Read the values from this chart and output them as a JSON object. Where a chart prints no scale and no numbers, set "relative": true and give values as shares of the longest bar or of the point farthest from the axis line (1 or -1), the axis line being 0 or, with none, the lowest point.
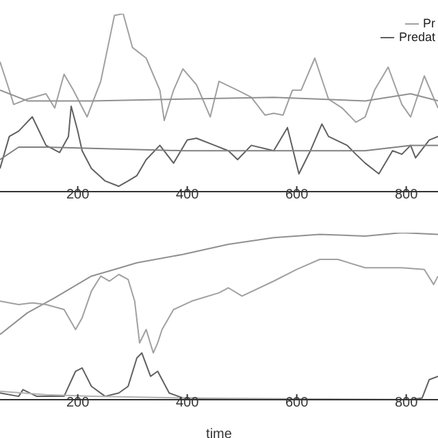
{
  "chart_data": [
    {
      "type": "line",
      "relative": true,
      "xlim": [
        58,
        858
      ],
      "xticks": [
        200,
        400,
        600,
        800
      ],
      "legend": "top right",
      "series": [
        {
          "name": "Pr",
          "color": "#a0a0a0",
          "x": [
            58,
            75,
            83,
            108,
            142,
            158,
            175,
            192,
            217,
            242,
            267,
            283,
            300,
            325,
            350,
            358,
            375,
            392,
            417,
            442,
            458,
            492,
            517,
            542,
            558,
            575,
            592,
            608,
            633,
            658,
            683,
            708,
            725,
            742,
            767,
            792,
            808,
            833,
            858
          ],
          "values": [
            0.73,
            0.57,
            0.49,
            0.52,
            0.55,
            0.47,
            0.66,
            0.57,
            0.42,
            0.62,
            0.99,
            1.0,
            0.81,
            0.75,
            0.57,
            0.4,
            0.57,
            0.69,
            0.6,
            0.42,
            0.62,
            0.57,
            0.53,
            0.43,
            0.44,
            0.43,
            0.57,
            0.57,
            0.75,
            0.52,
            0.47,
            0.39,
            0.42,
            0.57,
            0.7,
            0.49,
            0.42,
            0.65,
            0.47
          ]
        },
        {
          "name": "Predat",
          "color": "#606060",
          "x": [
            58,
            75,
            92,
            117,
            142,
            167,
            183,
            188,
            200,
            208,
            225,
            250,
            275,
            292,
            308,
            325,
            350,
            375,
            400,
            417,
            450,
            475,
            492,
            517,
            558,
            583,
            604,
            625,
            646,
            658,
            692,
            708,
            725,
            750,
            775,
            792,
            808,
            817,
            842,
            858
          ],
          "values": [
            0.13,
            0.31,
            0.34,
            0.42,
            0.26,
            0.22,
            0.31,
            0.48,
            0.34,
            0.23,
            0.13,
            0.06,
            0.03,
            0.06,
            0.09,
            0.18,
            0.26,
            0.16,
            0.29,
            0.3,
            0.26,
            0.23,
            0.18,
            0.26,
            0.23,
            0.36,
            0.1,
            0.23,
            0.38,
            0.31,
            0.26,
            0.21,
            0.16,
            0.1,
            0.23,
            0.21,
            0.26,
            0.19,
            0.29,
            0.31
          ]
        },
        {
          "color": "#909090",
          "x": [
            58,
            108,
            225,
            392,
            558,
            725,
            808,
            858
          ],
          "values": [
            0.57,
            0.51,
            0.51,
            0.52,
            0.53,
            0.51,
            0.55,
            0.51
          ]
        },
        {
          "color": "#808080",
          "x": [
            58,
            92,
            142,
            392,
            642,
            725,
            808,
            858
          ],
          "values": [
            0.18,
            0.25,
            0.25,
            0.23,
            0.23,
            0.23,
            0.26,
            0.26
          ]
        }
      ]
    },
    {
      "type": "line",
      "relative": true,
      "xlabel": "time",
      "xlim": [
        58,
        858
      ],
      "xticks": [
        200,
        400,
        600,
        800
      ],
      "series": [
        {
          "color": "#909090",
          "x": [
            58,
            108,
            158,
            225,
            267,
            308,
            392,
            475,
            558,
            642,
            725,
            792,
            858
          ],
          "values": [
            0.39,
            0.52,
            0.61,
            0.74,
            0.78,
            0.82,
            0.87,
            0.93,
            0.97,
            0.99,
            0.98,
            1.0,
            0.99
          ]
        },
        {
          "color": "#a0a0a0",
          "x": [
            58,
            92,
            117,
            142,
            175,
            196,
            208,
            225,
            242,
            258,
            275,
            292,
            304,
            313,
            325,
            338,
            346,
            354,
            375,
            408,
            458,
            475,
            500,
            558,
            600,
            642,
            675,
            725,
            792,
            833,
            850,
            858
          ],
          "values": [
            0.59,
            0.57,
            0.58,
            0.57,
            0.54,
            0.42,
            0.49,
            0.65,
            0.74,
            0.71,
            0.75,
            0.72,
            0.59,
            0.34,
            0.42,
            0.28,
            0.34,
            0.42,
            0.54,
            0.59,
            0.64,
            0.67,
            0.62,
            0.71,
            0.78,
            0.84,
            0.84,
            0.79,
            0.79,
            0.78,
            0.69,
            0.74
          ]
        },
        {
          "color": "#606060",
          "x": [
            58,
            92,
            100,
            125,
            175,
            196,
            208,
            225,
            250,
            275,
            292,
            308,
            317,
            333,
            346,
            367,
            392,
            558,
            808,
            829,
            842,
            858
          ],
          "values": [
            0.04,
            0.02,
            0.06,
            0.02,
            0.02,
            0.17,
            0.19,
            0.08,
            0.02,
            0.04,
            0.08,
            0.25,
            0.28,
            0.14,
            0.17,
            0.04,
            0.01,
            0.0,
            0.0,
            0.01,
            0.12,
            0.14
          ]
        },
        {
          "color": "#b0b0b0",
          "x": [
            58,
            142,
            225,
            392,
            858
          ],
          "values": [
            0.05,
            0.03,
            0.02,
            0.01,
            0.0
          ]
        }
      ]
    }
  ]
}
